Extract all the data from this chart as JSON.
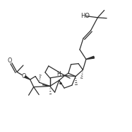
{
  "bg": "#ffffff",
  "lc": "#2d2d2d",
  "lw": 0.9,
  "fs": 5.5,
  "figsize": [
    1.87,
    1.86
  ],
  "dpi": 100,
  "xlim": [
    0.0,
    1.0
  ],
  "ylim": [
    0.08,
    1.0
  ]
}
